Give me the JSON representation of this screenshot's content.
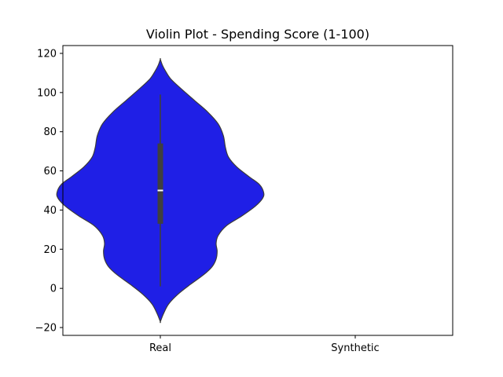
{
  "chart_data": {
    "type": "violin",
    "title": "Violin Plot - Spending Score (1-100)",
    "xlabel": "",
    "ylabel": "",
    "categories": [
      "Real",
      "Synthetic"
    ],
    "ylim": [
      -24,
      124
    ],
    "yticks": [
      -20,
      0,
      20,
      40,
      60,
      80,
      100,
      120
    ],
    "ytick_labels": [
      "−20",
      "0",
      "20",
      "40",
      "60",
      "80",
      "100",
      "120"
    ],
    "grid": false,
    "violin_color": "#1f1fe6",
    "box_color": "#3f3f3f",
    "series": [
      {
        "category": "Real",
        "min": 1,
        "q1": 33,
        "median": 50,
        "q3": 74,
        "max": 99,
        "density_range": [
          -17,
          117
        ],
        "density_profile": [
          {
            "y": -17,
            "w": 0.0
          },
          {
            "y": -13,
            "w": 0.03
          },
          {
            "y": -8,
            "w": 0.08
          },
          {
            "y": -3,
            "w": 0.17
          },
          {
            "y": 2,
            "w": 0.29
          },
          {
            "y": 7,
            "w": 0.42
          },
          {
            "y": 11,
            "w": 0.5
          },
          {
            "y": 15,
            "w": 0.54
          },
          {
            "y": 19,
            "w": 0.55
          },
          {
            "y": 23,
            "w": 0.54
          },
          {
            "y": 27,
            "w": 0.56
          },
          {
            "y": 32,
            "w": 0.64
          },
          {
            "y": 37,
            "w": 0.79
          },
          {
            "y": 42,
            "w": 0.92
          },
          {
            "y": 46,
            "w": 0.99
          },
          {
            "y": 49,
            "w": 1.0
          },
          {
            "y": 53,
            "w": 0.96
          },
          {
            "y": 57,
            "w": 0.86
          },
          {
            "y": 62,
            "w": 0.74
          },
          {
            "y": 67,
            "w": 0.66
          },
          {
            "y": 72,
            "w": 0.63
          },
          {
            "y": 78,
            "w": 0.61
          },
          {
            "y": 84,
            "w": 0.56
          },
          {
            "y": 90,
            "w": 0.46
          },
          {
            "y": 96,
            "w": 0.33
          },
          {
            "y": 102,
            "w": 0.2
          },
          {
            "y": 107,
            "w": 0.1
          },
          {
            "y": 111,
            "w": 0.05
          },
          {
            "y": 114,
            "w": 0.02
          },
          {
            "y": 117,
            "w": 0.0
          }
        ]
      }
    ]
  }
}
